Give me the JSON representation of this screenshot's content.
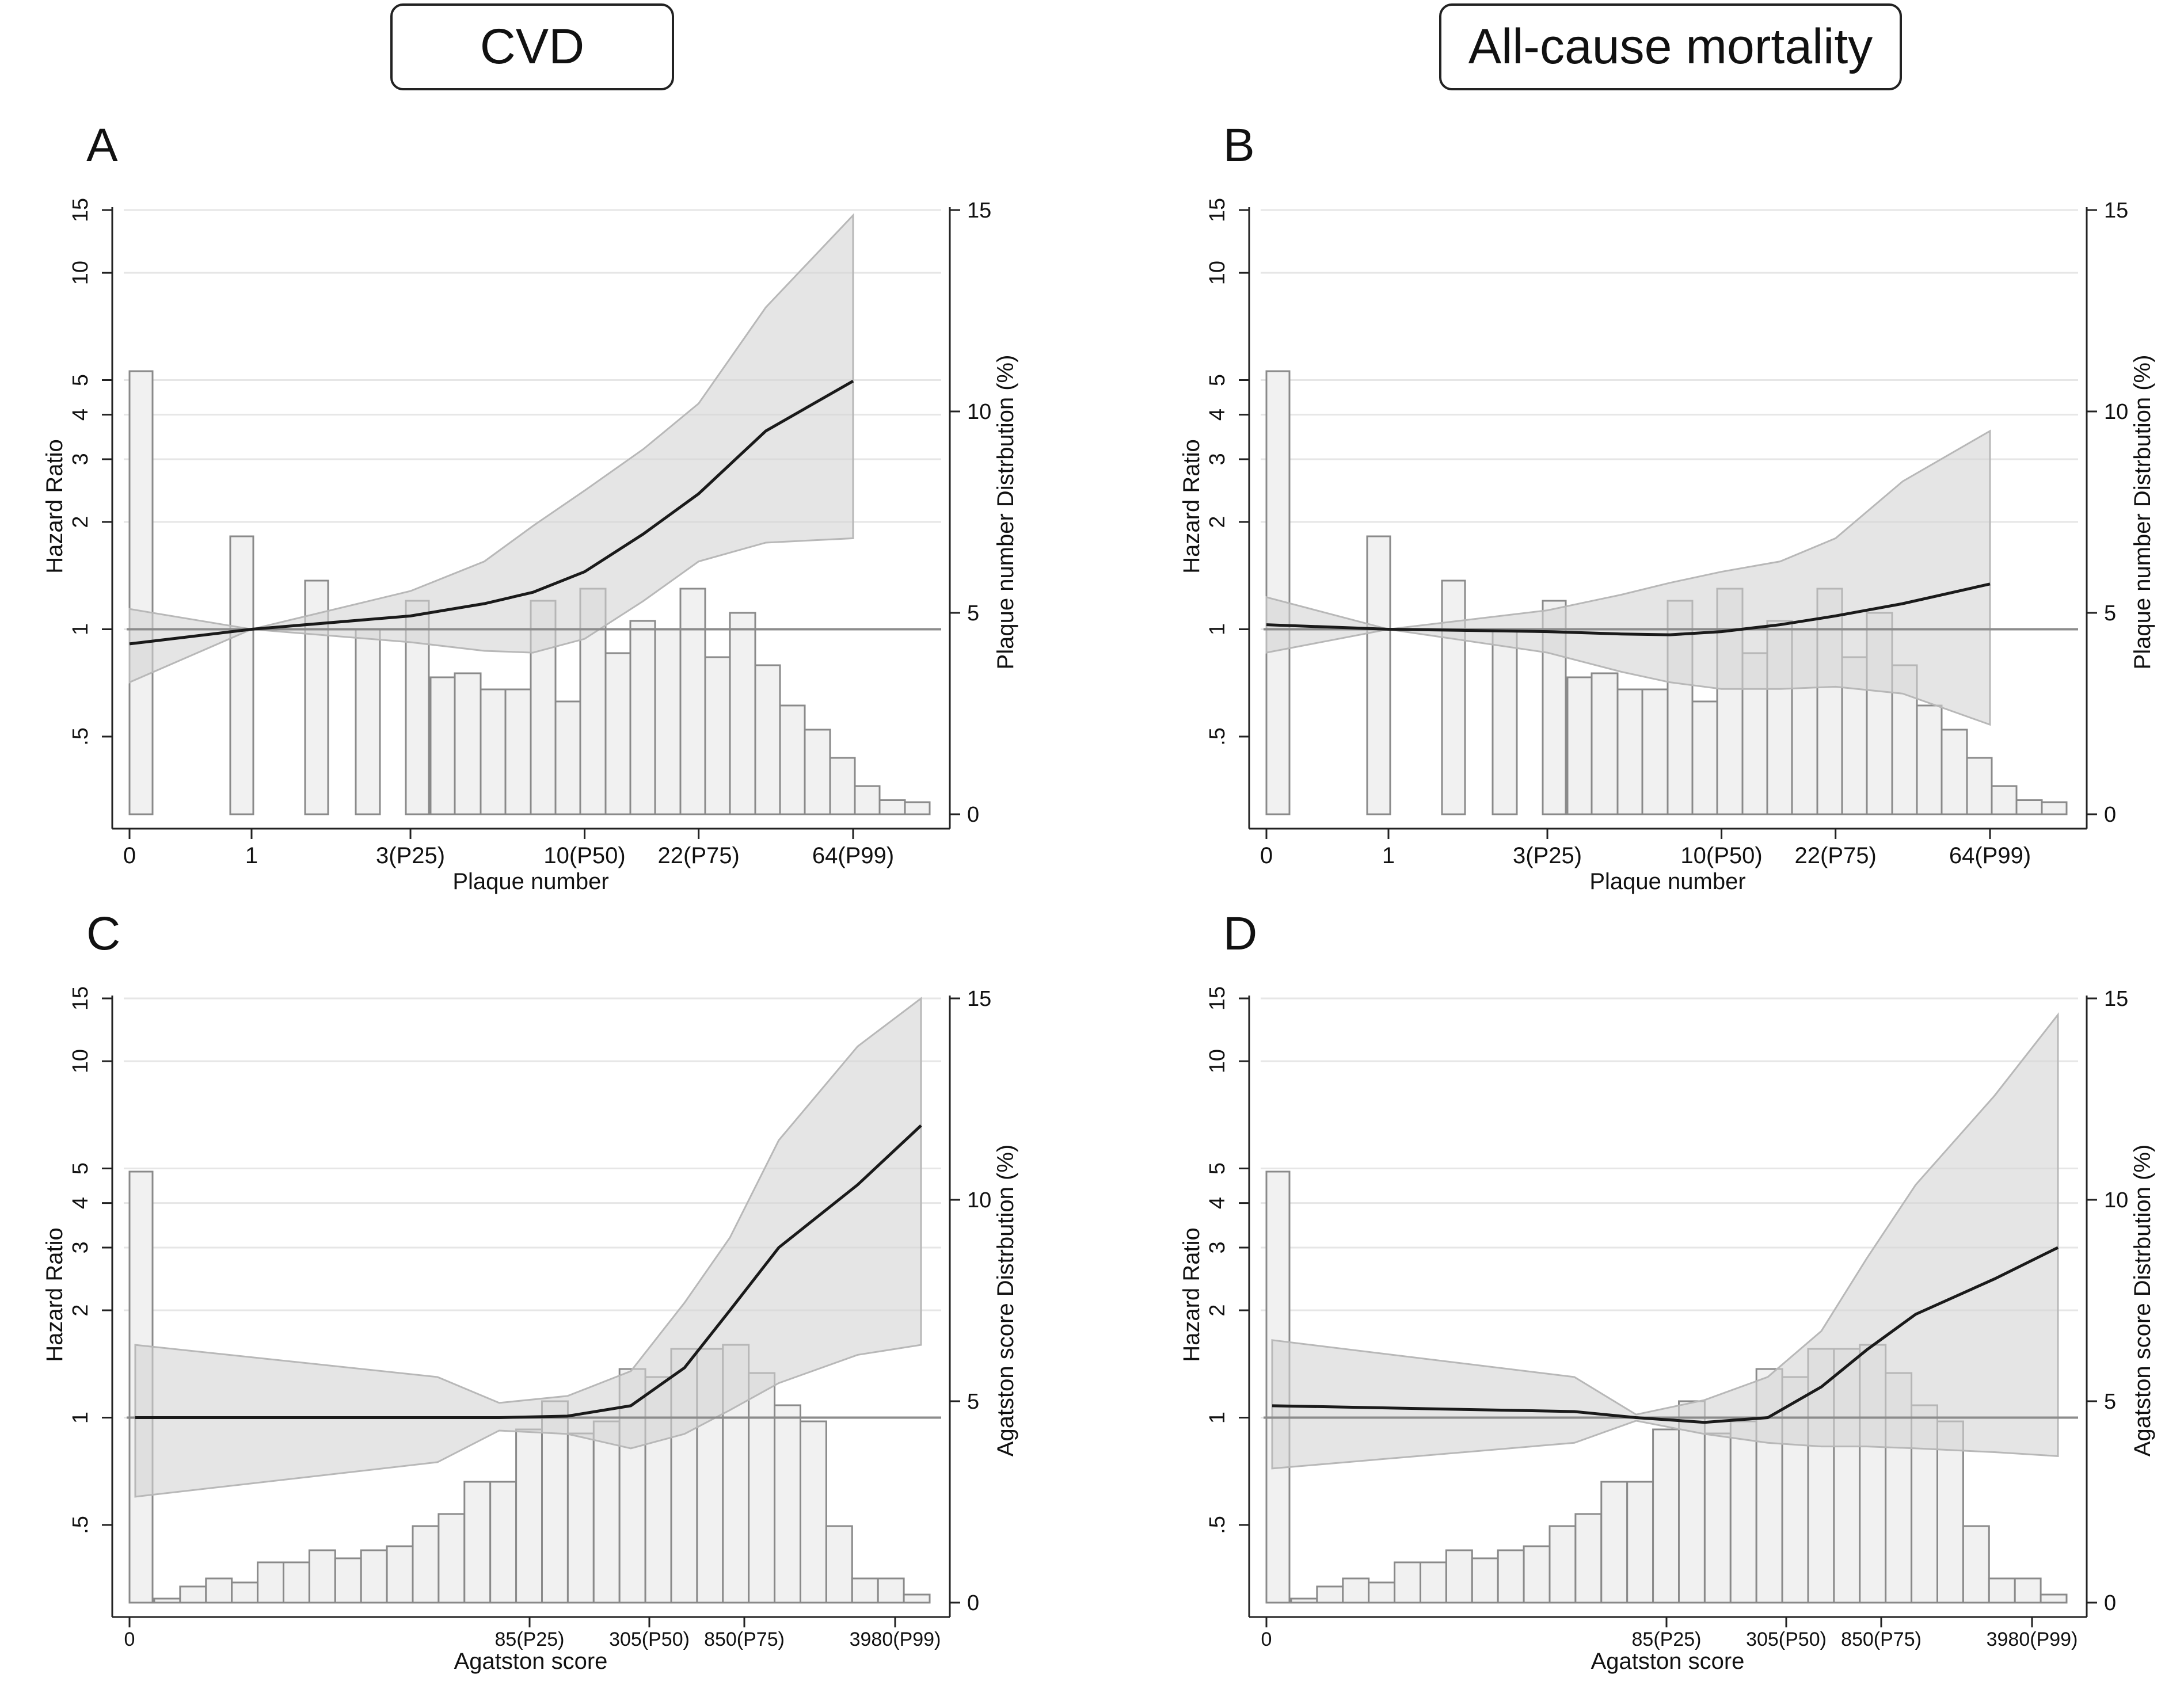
{
  "headers": {
    "left": "CVD",
    "right": "All-cause mortality"
  },
  "colors": {
    "band": "#d3d3d3",
    "bar_fill": "#f1f1f1",
    "bar_stroke": "#8a8a8a",
    "curve": "#1a1a1a",
    "refline": "#8c8c8c",
    "grid": "#e6e6e6"
  },
  "chart_data": [
    {
      "panel": "A",
      "type": "line",
      "xlabel": "Plaque number",
      "ylabel": "Hazard Ratio",
      "y2label": "Plaque number Distrbution (%)",
      "x_ticks": [
        "0",
        "1",
        "3(P25)",
        "10(P50)",
        "22(P75)",
        "64(P99)"
      ],
      "y_ticks": [
        "15",
        "10",
        "5",
        "4",
        "3",
        "2",
        "1",
        ".5"
      ],
      "y2_ticks": [
        "15",
        "10",
        "5",
        "0"
      ],
      "y_scale": "log",
      "ylim": [
        0.5,
        15
      ],
      "y2lim": [
        0,
        15
      ],
      "reference_hr": 1,
      "hr_curve": [
        [
          0,
          0.91
        ],
        [
          1,
          1.0
        ],
        [
          3,
          1.09
        ],
        [
          5,
          1.18
        ],
        [
          7,
          1.27
        ],
        [
          10,
          1.45
        ],
        [
          15,
          1.85
        ],
        [
          22,
          2.4
        ],
        [
          35,
          3.6
        ],
        [
          64,
          4.97
        ]
      ],
      "hr_ci": [
        [
          0,
          0.71,
          1.14
        ],
        [
          1,
          1.0,
          1.0
        ],
        [
          3,
          0.92,
          1.28
        ],
        [
          5,
          0.87,
          1.55
        ],
        [
          7,
          0.86,
          1.95
        ],
        [
          10,
          0.94,
          2.45
        ],
        [
          15,
          1.2,
          3.2
        ],
        [
          22,
          1.55,
          4.3
        ],
        [
          35,
          1.75,
          8.0
        ],
        [
          64,
          1.8,
          14.5
        ]
      ],
      "distribution_pct": [
        11.0,
        6.9,
        5.8,
        4.6,
        5.3,
        3.4,
        3.5,
        3.1,
        3.1,
        5.3,
        2.8,
        5.6,
        4.0,
        4.8,
        4.6,
        5.6,
        3.9,
        5.0,
        3.7,
        2.7,
        2.1,
        1.4,
        0.7,
        0.35,
        0.3
      ]
    },
    {
      "panel": "B",
      "type": "line",
      "xlabel": "Plaque number",
      "ylabel": "Hazard Ratio",
      "y2label": "Plaque number Distrbution (%)",
      "x_ticks": [
        "0",
        "1",
        "3(P25)",
        "10(P50)",
        "22(P75)",
        "64(P99)"
      ],
      "y_ticks": [
        "15",
        "10",
        "5",
        "4",
        "3",
        "2",
        "1",
        ".5"
      ],
      "y2_ticks": [
        "15",
        "10",
        "5",
        "0"
      ],
      "y_scale": "log",
      "ylim": [
        0.5,
        15
      ],
      "y2lim": [
        0,
        15
      ],
      "reference_hr": 1,
      "hr_curve": [
        [
          0,
          1.03
        ],
        [
          1,
          1.0
        ],
        [
          3,
          0.985
        ],
        [
          5,
          0.97
        ],
        [
          7,
          0.965
        ],
        [
          10,
          0.985
        ],
        [
          15,
          1.03
        ],
        [
          22,
          1.09
        ],
        [
          35,
          1.18
        ],
        [
          64,
          1.34
        ]
      ],
      "hr_ci": [
        [
          0,
          0.86,
          1.23
        ],
        [
          1,
          1.0,
          1.0
        ],
        [
          3,
          0.86,
          1.13
        ],
        [
          5,
          0.76,
          1.25
        ],
        [
          7,
          0.71,
          1.35
        ],
        [
          10,
          0.68,
          1.45
        ],
        [
          15,
          0.68,
          1.55
        ],
        [
          22,
          0.69,
          1.8
        ],
        [
          35,
          0.66,
          2.6
        ],
        [
          64,
          0.54,
          3.6
        ]
      ],
      "distribution_pct": [
        11.0,
        6.9,
        5.8,
        4.6,
        5.3,
        3.4,
        3.5,
        3.1,
        3.1,
        5.3,
        2.8,
        5.6,
        4.0,
        4.8,
        4.6,
        5.6,
        3.9,
        5.0,
        3.7,
        2.7,
        2.1,
        1.4,
        0.7,
        0.35,
        0.3
      ]
    },
    {
      "panel": "C",
      "type": "line",
      "xlabel": "Agatston score",
      "ylabel": "Hazard Ratio",
      "y2label": "Agatston score Distrbution (%)",
      "x_ticks": [
        "0",
        "85(P25)",
        "305(P50)",
        "850(P75)",
        "3980(P99)"
      ],
      "y_ticks": [
        "15",
        "10",
        "5",
        "4",
        "3",
        "2",
        "1",
        ".5"
      ],
      "y2_ticks": [
        "15",
        "10",
        "5",
        "0"
      ],
      "y_scale": "log",
      "ylim": [
        0.5,
        15
      ],
      "y2lim": [
        0,
        15
      ],
      "reference_hr": 1,
      "hr_curve": [
        [
          0,
          1.0
        ],
        [
          20,
          1.0
        ],
        [
          40,
          1.0
        ],
        [
          85,
          1.01
        ],
        [
          170,
          1.08
        ],
        [
          305,
          1.38
        ],
        [
          500,
          2.0
        ],
        [
          850,
          3.0
        ],
        [
          2000,
          4.5
        ],
        [
          3980,
          6.6
        ]
      ],
      "hr_ci": [
        [
          0,
          0.6,
          1.6
        ],
        [
          20,
          0.75,
          1.3
        ],
        [
          40,
          0.92,
          1.1
        ],
        [
          85,
          0.9,
          1.15
        ],
        [
          170,
          0.82,
          1.35
        ],
        [
          305,
          0.9,
          2.1
        ],
        [
          500,
          1.05,
          3.2
        ],
        [
          850,
          1.25,
          6.0
        ],
        [
          2000,
          1.5,
          11.0
        ],
        [
          3980,
          1.6,
          15.0
        ]
      ],
      "distribution_pct": [
        10.7,
        0.1,
        0.4,
        0.6,
        0.5,
        1.0,
        1.0,
        1.3,
        1.1,
        1.3,
        1.4,
        1.9,
        2.2,
        3.0,
        3.0,
        4.3,
        5.0,
        4.2,
        4.5,
        5.8,
        5.6,
        6.3,
        6.3,
        6.4,
        5.7,
        4.9,
        4.5,
        1.9,
        0.6,
        0.6,
        0.2
      ]
    },
    {
      "panel": "D",
      "type": "line",
      "xlabel": "Agatston score",
      "ylabel": "Hazard Ratio",
      "y2label": "Agatston score Distrbution (%)",
      "x_ticks": [
        "0",
        "85(P25)",
        "305(P50)",
        "850(P75)",
        "3980(P99)"
      ],
      "y_ticks": [
        "15",
        "10",
        "5",
        "4",
        "3",
        "2",
        "1",
        ".5"
      ],
      "y2_ticks": [
        "15",
        "10",
        "5",
        "0"
      ],
      "y_scale": "log",
      "ylim": [
        0.5,
        15
      ],
      "y2lim": [
        0,
        15
      ],
      "reference_hr": 1,
      "hr_curve": [
        [
          0,
          1.08
        ],
        [
          20,
          1.04
        ],
        [
          40,
          1.0
        ],
        [
          85,
          0.97
        ],
        [
          170,
          1.0
        ],
        [
          305,
          1.22
        ],
        [
          500,
          1.55
        ],
        [
          850,
          1.95
        ],
        [
          2000,
          2.45
        ],
        [
          3980,
          3.0
        ]
      ],
      "hr_ci": [
        [
          0,
          0.72,
          1.65
        ],
        [
          20,
          0.85,
          1.3
        ],
        [
          40,
          0.98,
          1.02
        ],
        [
          85,
          0.9,
          1.12
        ],
        [
          170,
          0.85,
          1.3
        ],
        [
          305,
          0.83,
          1.75
        ],
        [
          500,
          0.83,
          2.8
        ],
        [
          850,
          0.82,
          4.5
        ],
        [
          2000,
          0.8,
          8.0
        ],
        [
          3980,
          0.78,
          13.5
        ]
      ],
      "distribution_pct": [
        10.7,
        0.1,
        0.4,
        0.6,
        0.5,
        1.0,
        1.0,
        1.3,
        1.1,
        1.3,
        1.4,
        1.9,
        2.2,
        3.0,
        3.0,
        4.3,
        5.0,
        4.2,
        4.5,
        5.8,
        5.6,
        6.3,
        6.3,
        6.4,
        5.7,
        4.9,
        4.5,
        1.9,
        0.6,
        0.6,
        0.2
      ]
    }
  ]
}
